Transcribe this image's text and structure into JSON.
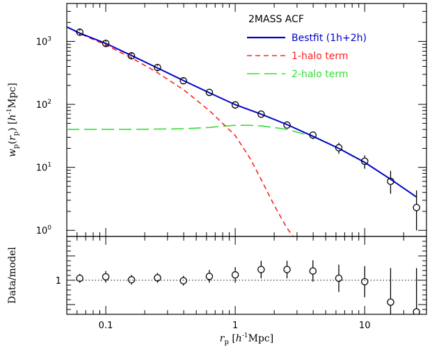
{
  "chart_data": [
    {
      "type": "line",
      "panel": "main",
      "x_scale": "log",
      "y_scale": "log",
      "xlim": [
        0.05,
        30
      ],
      "ylim": [
        0.8,
        4000
      ],
      "ylabel": "w_p(r_p) [h^-1 Mpc]",
      "ytick_labels": [
        "10^0",
        "10^1",
        "10^2",
        "10^3"
      ],
      "ytick_values": [
        1,
        10,
        100,
        1000
      ],
      "legend_title": "2MASS ACF",
      "legend_position": "top-right",
      "series": [
        {
          "name": "Bestfit (1h+2h)",
          "style": "solid",
          "color": "#0000cc",
          "x": [
            0.05,
            0.063,
            0.1,
            0.16,
            0.25,
            0.4,
            0.63,
            1.0,
            1.58,
            2.5,
            4.0,
            6.3,
            10,
            15.8,
            25
          ],
          "y": [
            1700,
            1350,
            930,
            590,
            380,
            238,
            153,
            99,
            70,
            48,
            31,
            20,
            12,
            6.5,
            3.4
          ]
        },
        {
          "name": "1-halo term",
          "style": "short-dash",
          "color": "#ff2020",
          "x": [
            0.05,
            0.063,
            0.1,
            0.16,
            0.25,
            0.4,
            0.63,
            1.0,
            1.3,
            1.58,
            2.0,
            2.5,
            2.8
          ],
          "y": [
            1700,
            1330,
            880,
            540,
            320,
            170,
            80,
            32,
            14,
            6.5,
            2.5,
            1.1,
            0.8
          ]
        },
        {
          "name": "2-halo term",
          "style": "long-dash",
          "color": "#33dd33",
          "x": [
            0.05,
            0.1,
            0.16,
            0.25,
            0.4,
            0.63,
            0.8,
            1.0,
            1.3,
            1.58,
            2.0,
            2.5,
            4.0,
            6.3,
            10,
            15.8,
            25
          ],
          "y": [
            40,
            40,
            40,
            40.5,
            41,
            43,
            45,
            46.5,
            46.5,
            45.5,
            43,
            40,
            31,
            20,
            12,
            6.5,
            3.4
          ]
        }
      ],
      "data_points": {
        "x": [
          0.063,
          0.1,
          0.158,
          0.251,
          0.398,
          0.631,
          1.0,
          1.585,
          2.512,
          3.981,
          6.31,
          10.0,
          15.85,
          25.12
        ],
        "y": [
          1400,
          930,
          590,
          385,
          237,
          155,
          98,
          70,
          47,
          32.5,
          20.5,
          12.5,
          6.0,
          2.3
        ],
        "yerr_lo": [
          80,
          50,
          35,
          25,
          20,
          15,
          9,
          7,
          5,
          4.5,
          4,
          3,
          2.2,
          1.3
        ],
        "yerr_hi": [
          80,
          50,
          35,
          25,
          20,
          15,
          9,
          7,
          5,
          4.5,
          4,
          3,
          2.8,
          2.0
        ]
      }
    },
    {
      "type": "scatter",
      "panel": "ratio",
      "x_scale": "log",
      "y_scale": "linear",
      "xlim": [
        0.05,
        30
      ],
      "ylim": [
        0.3,
        1.9
      ],
      "ylabel": "Data/model",
      "xlabel": "r_p [h^-1 Mpc]",
      "ytick_labels": [
        "1"
      ],
      "ytick_values": [
        1
      ],
      "xtick_labels": [
        "0.1",
        "1",
        "10"
      ],
      "xtick_values": [
        0.1,
        1,
        10
      ],
      "reference_line": 1,
      "data_points": {
        "x": [
          0.063,
          0.1,
          0.158,
          0.251,
          0.398,
          0.631,
          1.0,
          1.585,
          2.512,
          3.981,
          6.31,
          10.0,
          15.85,
          25.12
        ],
        "y": [
          1.04,
          1.07,
          1.01,
          1.05,
          0.99,
          1.08,
          1.11,
          1.22,
          1.22,
          1.19,
          1.04,
          0.97,
          0.55,
          0.35
        ],
        "yerr": [
          0.09,
          0.12,
          0.1,
          0.1,
          0.1,
          0.13,
          0.16,
          0.18,
          0.18,
          0.22,
          0.28,
          0.32,
          0.7,
          0.9
        ]
      }
    }
  ]
}
